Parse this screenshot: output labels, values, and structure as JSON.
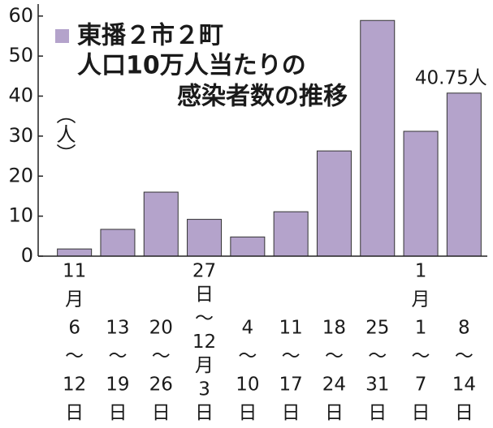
{
  "chart_data": {
    "type": "bar",
    "title": [
      "東播２市２町",
      "人口10万人当たりの",
      "感染者数の推移"
    ],
    "y_label": "（人）",
    "categories": [
      [
        "11",
        "月",
        "6",
        "〜",
        "12",
        "日"
      ],
      [
        "13",
        "〜",
        "19",
        "日"
      ],
      [
        "20",
        "〜",
        "26",
        "日"
      ],
      [
        "27",
        "日",
        "〜",
        "12",
        "月",
        "3",
        "日"
      ],
      [
        "4",
        "〜",
        "10",
        "日"
      ],
      [
        "11",
        "〜",
        "17",
        "日"
      ],
      [
        "18",
        "〜",
        "24",
        "日"
      ],
      [
        "25",
        "〜",
        "31",
        "日"
      ],
      [
        "1",
        "月",
        "1",
        "〜",
        "7",
        "日"
      ],
      [
        "8",
        "〜",
        "14",
        "日"
      ]
    ],
    "values": [
      1.8,
      6.7,
      16,
      9.2,
      4.8,
      11.1,
      26.3,
      58.9,
      31.2,
      40.75
    ],
    "value_labels": [
      null,
      null,
      null,
      null,
      null,
      null,
      null,
      null,
      null,
      "40.75人"
    ],
    "color": "#b4a3cb",
    "ylim": [
      0,
      63
    ],
    "yticks": [
      0,
      10,
      20,
      30,
      40,
      50,
      60
    ]
  }
}
